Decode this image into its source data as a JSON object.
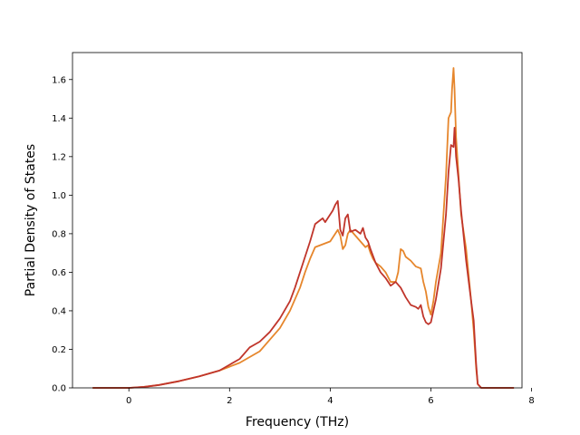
{
  "chart_data": {
    "type": "line",
    "title": "",
    "xlabel": "Frequency (THz)",
    "ylabel": "Partial Density of States",
    "xlim": [
      -1.12,
      7.81
    ],
    "ylim": [
      0.0,
      1.74
    ],
    "xticks": [
      0,
      2,
      4,
      6,
      8
    ],
    "yticks": [
      0.0,
      0.2,
      0.4,
      0.6,
      0.8,
      1.0,
      1.2,
      1.4,
      1.6
    ],
    "grid": false,
    "legend": "none",
    "series": [
      {
        "color": "#e6862c",
        "x": [
          -0.72,
          0.0,
          0.3,
          0.6,
          1.0,
          1.4,
          1.8,
          2.0,
          2.2,
          2.4,
          2.6,
          2.8,
          3.0,
          3.2,
          3.4,
          3.5,
          3.6,
          3.7,
          3.8,
          3.9,
          4.0,
          4.1,
          4.15,
          4.2,
          4.25,
          4.3,
          4.35,
          4.4,
          4.5,
          4.6,
          4.7,
          4.75,
          4.8,
          4.85,
          4.9,
          5.0,
          5.1,
          5.2,
          5.3,
          5.35,
          5.4,
          5.45,
          5.5,
          5.6,
          5.7,
          5.8,
          5.85,
          5.9,
          5.95,
          6.0,
          6.05,
          6.1,
          6.2,
          6.3,
          6.35,
          6.4,
          6.42,
          6.45,
          6.47,
          6.5,
          6.55,
          6.6,
          6.7,
          6.8,
          6.85,
          6.9,
          6.93,
          7.0,
          7.2,
          7.65
        ],
        "y": [
          0.0,
          0.0,
          0.005,
          0.015,
          0.035,
          0.06,
          0.09,
          0.11,
          0.13,
          0.16,
          0.19,
          0.25,
          0.31,
          0.4,
          0.52,
          0.6,
          0.67,
          0.73,
          0.74,
          0.75,
          0.76,
          0.8,
          0.82,
          0.79,
          0.72,
          0.74,
          0.8,
          0.82,
          0.79,
          0.76,
          0.73,
          0.74,
          0.7,
          0.67,
          0.65,
          0.63,
          0.6,
          0.55,
          0.55,
          0.6,
          0.72,
          0.71,
          0.68,
          0.66,
          0.63,
          0.62,
          0.55,
          0.5,
          0.42,
          0.38,
          0.45,
          0.55,
          0.7,
          1.1,
          1.4,
          1.43,
          1.55,
          1.66,
          1.55,
          1.3,
          1.1,
          0.9,
          0.72,
          0.45,
          0.3,
          0.1,
          0.02,
          0.0,
          0.0,
          0.0
        ]
      },
      {
        "color": "#c0352b",
        "x": [
          -0.72,
          0.0,
          0.3,
          0.6,
          1.0,
          1.4,
          1.8,
          2.0,
          2.2,
          2.4,
          2.6,
          2.8,
          3.0,
          3.2,
          3.3,
          3.4,
          3.5,
          3.6,
          3.7,
          3.8,
          3.85,
          3.9,
          4.0,
          4.05,
          4.1,
          4.15,
          4.2,
          4.25,
          4.3,
          4.35,
          4.4,
          4.5,
          4.6,
          4.65,
          4.7,
          4.75,
          4.8,
          4.9,
          5.0,
          5.1,
          5.2,
          5.3,
          5.4,
          5.5,
          5.6,
          5.7,
          5.75,
          5.8,
          5.85,
          5.9,
          5.95,
          6.0,
          6.1,
          6.2,
          6.3,
          6.35,
          6.4,
          6.45,
          6.47,
          6.5,
          6.55,
          6.6,
          6.7,
          6.8,
          6.85,
          6.9,
          6.93,
          7.0,
          7.2,
          7.65
        ],
        "y": [
          0.0,
          0.0,
          0.005,
          0.015,
          0.035,
          0.06,
          0.09,
          0.12,
          0.15,
          0.21,
          0.24,
          0.29,
          0.36,
          0.45,
          0.52,
          0.6,
          0.68,
          0.76,
          0.85,
          0.87,
          0.88,
          0.86,
          0.9,
          0.92,
          0.95,
          0.97,
          0.82,
          0.79,
          0.88,
          0.9,
          0.81,
          0.82,
          0.8,
          0.83,
          0.78,
          0.76,
          0.72,
          0.65,
          0.6,
          0.57,
          0.53,
          0.55,
          0.52,
          0.47,
          0.43,
          0.42,
          0.41,
          0.43,
          0.37,
          0.34,
          0.33,
          0.34,
          0.46,
          0.62,
          0.9,
          1.12,
          1.26,
          1.25,
          1.35,
          1.2,
          1.08,
          0.92,
          0.66,
          0.45,
          0.35,
          0.12,
          0.02,
          0.0,
          0.0,
          0.0
        ]
      }
    ]
  }
}
